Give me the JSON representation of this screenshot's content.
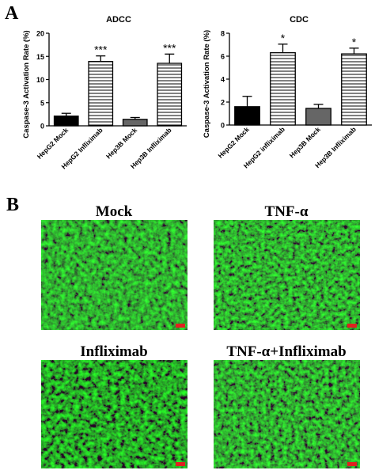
{
  "panel_labels": [
    "A",
    "B"
  ],
  "chart_data": [
    {
      "type": "bar",
      "title": "ADCC",
      "ylabel": "Caspase-3 Activation Rate (%)",
      "categories": [
        "HepG2 Mock",
        "HepG2 Infliximab",
        "Hep3B Mock",
        "Hep3B Infliximab"
      ],
      "values": [
        2.1,
        13.9,
        1.4,
        13.5
      ],
      "errors": [
        0.6,
        1.2,
        0.4,
        2.0
      ],
      "fills": [
        "#000000",
        "hatch",
        "#666666",
        "hatch"
      ],
      "annotations": [
        null,
        "***",
        null,
        "***"
      ],
      "ylim": [
        0,
        20
      ],
      "yticks": [
        0,
        5,
        10,
        15,
        20
      ]
    },
    {
      "type": "bar",
      "title": "CDC",
      "ylabel": "Caspase-3 Activation Rate (%)",
      "categories": [
        "HepG2 Mock",
        "HepG2 infliximab",
        "Hep3B Mock",
        "Hep3B Infliximab"
      ],
      "values": [
        1.6,
        6.3,
        1.45,
        6.2
      ],
      "errors": [
        0.9,
        0.75,
        0.35,
        0.5
      ],
      "fills": [
        "#000000",
        "hatch",
        "#666666",
        "hatch"
      ],
      "annotations": [
        null,
        "*",
        null,
        "*"
      ],
      "ylim": [
        0,
        8
      ],
      "yticks": [
        0,
        2,
        4,
        6,
        8
      ]
    }
  ],
  "images": [
    {
      "label": "Mock"
    },
    {
      "label": "TNF-α"
    },
    {
      "label": "Infliximab"
    },
    {
      "label": "TNF-α+Infliximab"
    }
  ]
}
